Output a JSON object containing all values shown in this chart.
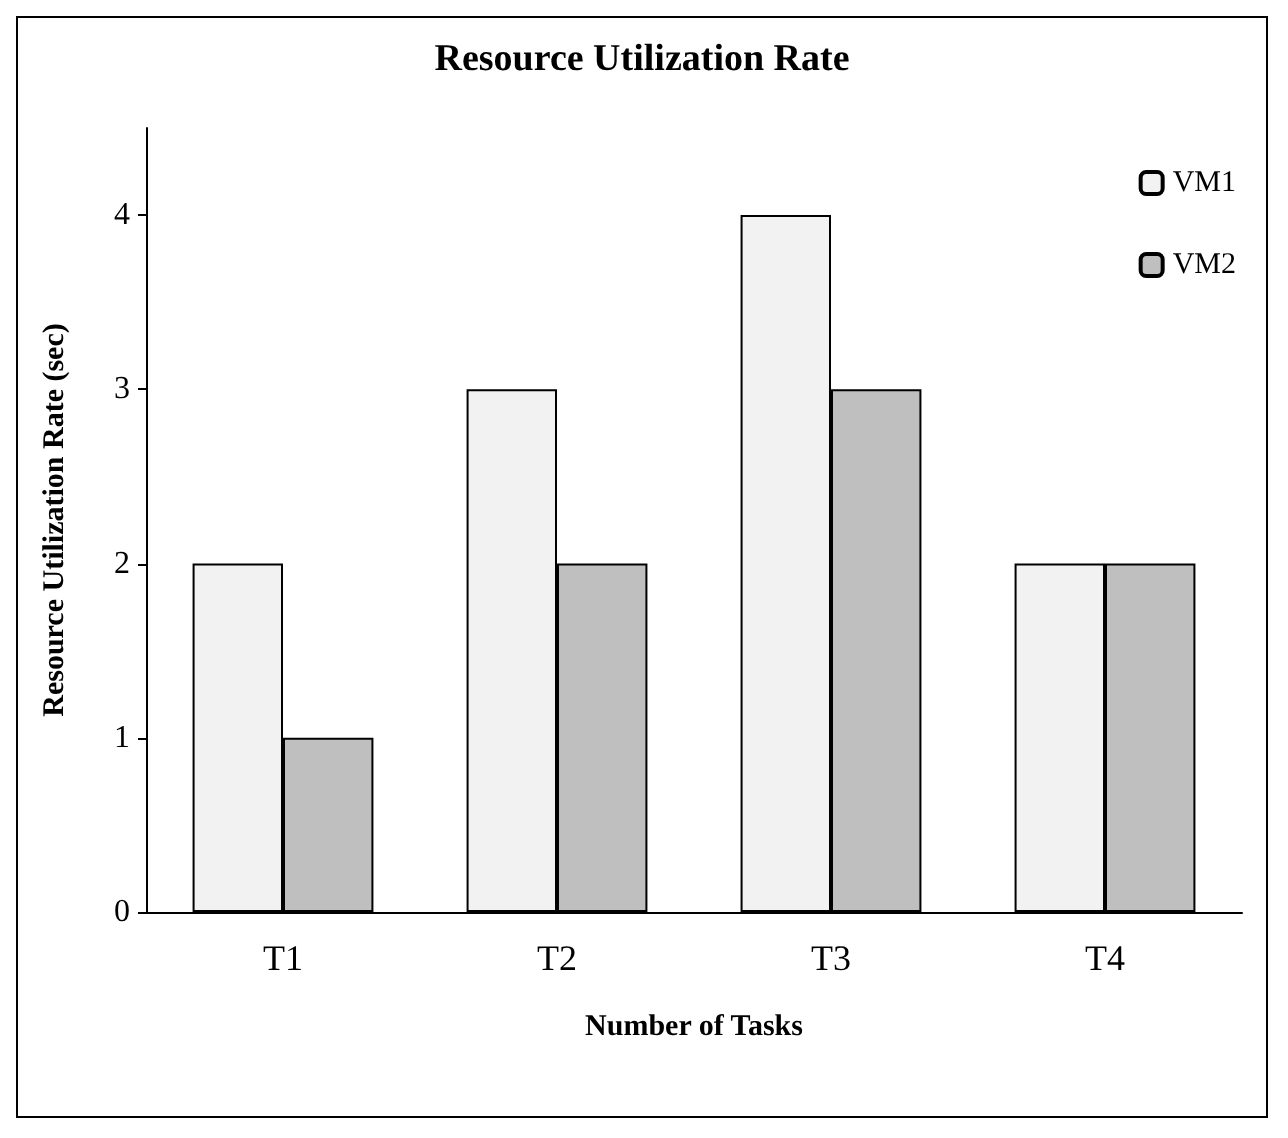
{
  "chart_data": {
    "type": "bar",
    "title": "Resource Utilization Rate",
    "xlabel": "Number of Tasks",
    "ylabel": "Resource Utilization Rate (sec)",
    "categories": [
      "T1",
      "T2",
      "T3",
      "T4"
    ],
    "series": [
      {
        "name": "VM1",
        "color": "#f2f2f2",
        "values": [
          2,
          3,
          4,
          2
        ]
      },
      {
        "name": "VM2",
        "color": "#bfbfbf",
        "values": [
          1,
          2,
          3,
          2
        ]
      }
    ],
    "ylim": [
      0,
      4.5
    ],
    "yticks": [
      0,
      1,
      2,
      3,
      4
    ],
    "grid": false,
    "legend": "top right"
  }
}
